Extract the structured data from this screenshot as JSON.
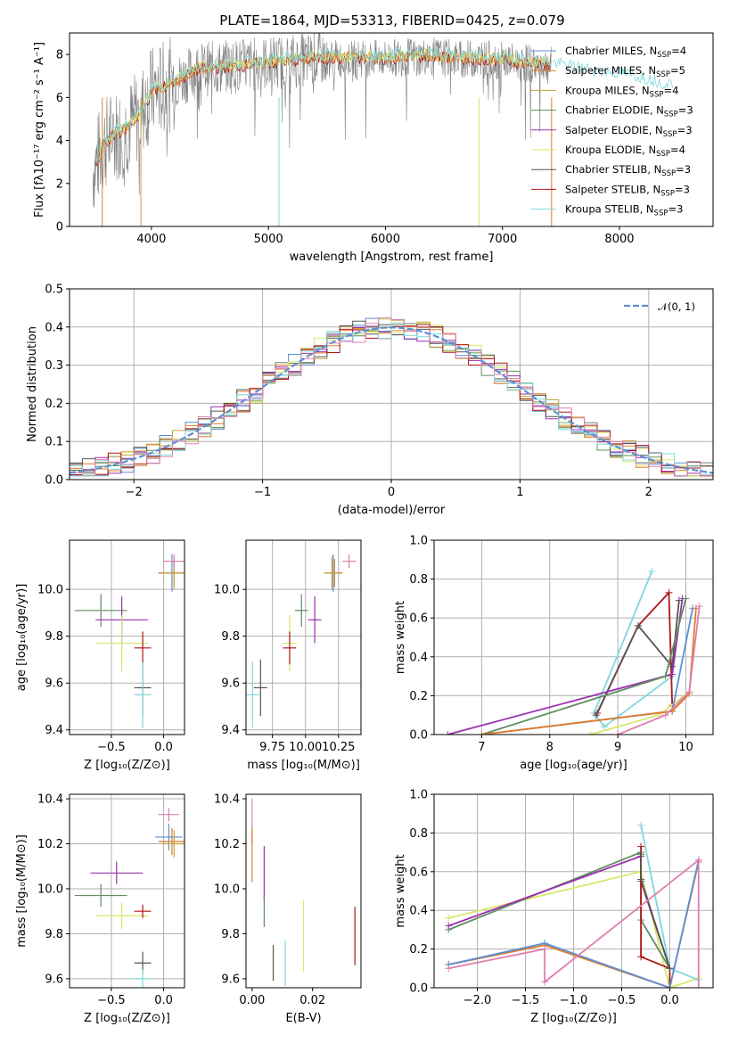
{
  "figure": {
    "title": "PLATE=1864, MJD=53313, FIBERID=0425, z=0.079"
  },
  "colors": {
    "Chabrier MILES": "#5a8fd6",
    "Salpeter MILES": "#e07b2a",
    "Kroupa MILES": "#c4a23a",
    "Chabrier ELODIE": "#5f8f5f",
    "Salpeter ELODIE": "#9b30b0",
    "Kroupa ELODIE": "#d6e86a",
    "Chabrier STELIB": "#555555",
    "Salpeter STELIB": "#b01515",
    "Kroupa STELIB": "#7fd8dc",
    "data": "#808080",
    "pink": "#e07fb0",
    "gaussian": "#5a8fd6",
    "grid": "#b0b0b0"
  },
  "chart_data": [
    {
      "id": "spectrum",
      "type": "line",
      "xlabel": "wavelength [Angstrom, rest frame]",
      "ylabel": "Flux [fλ10⁻¹⁷ erg cm⁻² s⁻¹ A⁻¹]",
      "xlim": [
        3300,
        8800
      ],
      "ylim": [
        0,
        9
      ],
      "xticks": [
        4000,
        5000,
        6000,
        7000,
        8000
      ],
      "yticks": [
        0,
        2,
        4,
        6,
        8
      ],
      "grid": false,
      "legend_position": "right",
      "legend": [
        "Chabrier MILES, N_SSP=4",
        "Salpeter MILES, N_SSP=5",
        "Kroupa MILES, N_SSP=4",
        "Chabrier ELODIE, N_SSP=3",
        "Salpeter ELODIE, N_SSP=3",
        "Kroupa ELODIE, N_SSP=4",
        "Chabrier STELIB, N_SSP=3",
        "Salpeter STELIB, N_SSP=3",
        "Kroupa STELIB, N_SSP=3"
      ],
      "continuum": {
        "x": [
          3500,
          3600,
          3700,
          3800,
          3900,
          4000,
          4200,
          4400,
          4600,
          4800,
          5000,
          5200,
          5400,
          5600,
          5800,
          6000,
          6200,
          6400,
          6600,
          6800,
          7000,
          7200,
          7400,
          7600,
          7800,
          8000,
          8200,
          8400
        ],
        "y": [
          2.6,
          3.9,
          4.3,
          4.6,
          5.2,
          6.2,
          6.7,
          7.3,
          7.4,
          7.5,
          7.6,
          7.7,
          7.8,
          7.8,
          7.8,
          7.8,
          7.9,
          7.9,
          7.8,
          7.8,
          7.7,
          7.6,
          7.5,
          7.3,
          7.1,
          7.0,
          6.8,
          6.5
        ]
      }
    },
    {
      "id": "residuals",
      "type": "bar",
      "xlabel": "(data-model)/error",
      "ylabel": "Normed distribution",
      "xlim": [
        -2.5,
        2.5
      ],
      "ylim": [
        0,
        0.5
      ],
      "xticks": [
        -2,
        -1,
        0,
        1,
        2
      ],
      "yticks": [
        0.0,
        0.1,
        0.2,
        0.3,
        0.4,
        0.5
      ],
      "grid": true,
      "legend_position": "top-right",
      "legend": [
        "𝒩(0, 1)"
      ],
      "bin_width": 0.1
    },
    {
      "id": "age_vs_Z",
      "type": "scatter",
      "xlabel": "Z [log₁₀(Z/Z⊙)]",
      "ylabel": "age  [log₁₀(age/yr)]",
      "xlim": [
        -0.9,
        0.2
      ],
      "ylim": [
        9.38,
        10.21
      ],
      "xticks": [
        -0.5,
        0.0
      ],
      "yticks": [
        9.4,
        9.6,
        9.8,
        10.0
      ],
      "grid": true,
      "points": [
        {
          "model": "Chabrier MILES",
          "x": 0.08,
          "y": 10.07,
          "xerr": 0.13,
          "yerr": 0.08
        },
        {
          "model": "Salpeter MILES",
          "x": 0.1,
          "y": 10.07,
          "xerr": 0.13,
          "yerr": 0.06
        },
        {
          "model": "Kroupa MILES",
          "x": 0.1,
          "y": 10.07,
          "xerr": 0.12,
          "yerr": 0.07
        },
        {
          "model": "Chabrier ELODIE",
          "x": -0.6,
          "y": 9.91,
          "xerr": 0.25,
          "yerr": 0.07
        },
        {
          "model": "Salpeter ELODIE",
          "x": -0.4,
          "y": 9.87,
          "xerr": 0.25,
          "yerr": 0.1
        },
        {
          "model": "Kroupa ELODIE",
          "x": -0.4,
          "y": 9.77,
          "xerr": 0.25,
          "yerr": 0.12
        },
        {
          "model": "Chabrier STELIB",
          "x": -0.2,
          "y": 9.58,
          "xerr": 0.08,
          "yerr": 0.12
        },
        {
          "model": "Salpeter STELIB",
          "x": -0.2,
          "y": 9.75,
          "xerr": 0.08,
          "yerr": 0.07
        },
        {
          "model": "Kroupa STELIB",
          "x": -0.2,
          "y": 9.55,
          "xerr": 0.08,
          "yerr": 0.14
        },
        {
          "model": "pink",
          "x": 0.1,
          "y": 10.12,
          "xerr": 0.1,
          "yerr": 0.03
        }
      ]
    },
    {
      "id": "age_vs_mass",
      "type": "scatter",
      "xlabel": "mass [log₁₀(M/M⊙)]",
      "ylabel": "",
      "xlim": [
        9.55,
        10.42
      ],
      "ylim": [
        9.38,
        10.21
      ],
      "xticks": [
        9.75,
        10.0,
        10.25
      ],
      "yticks": [
        9.4,
        9.6,
        9.8,
        10.0
      ],
      "grid": true,
      "points": [
        {
          "model": "Chabrier MILES",
          "x": 10.21,
          "y": 10.07,
          "xerr": 0.06,
          "yerr": 0.08
        },
        {
          "model": "Salpeter MILES",
          "x": 10.22,
          "y": 10.07,
          "xerr": 0.06,
          "yerr": 0.06
        },
        {
          "model": "Kroupa MILES",
          "x": 10.2,
          "y": 10.07,
          "xerr": 0.06,
          "yerr": 0.07
        },
        {
          "model": "Chabrier ELODIE",
          "x": 9.97,
          "y": 9.91,
          "xerr": 0.05,
          "yerr": 0.07
        },
        {
          "model": "Salpeter ELODIE",
          "x": 10.07,
          "y": 9.87,
          "xerr": 0.05,
          "yerr": 0.1
        },
        {
          "model": "Kroupa ELODIE",
          "x": 9.88,
          "y": 9.77,
          "xerr": 0.05,
          "yerr": 0.12
        },
        {
          "model": "Chabrier STELIB",
          "x": 9.66,
          "y": 9.58,
          "xerr": 0.05,
          "yerr": 0.12
        },
        {
          "model": "Salpeter STELIB",
          "x": 9.88,
          "y": 9.75,
          "xerr": 0.05,
          "yerr": 0.07
        },
        {
          "model": "Kroupa STELIB",
          "x": 9.6,
          "y": 9.55,
          "xerr": 0.05,
          "yerr": 0.14
        },
        {
          "model": "pink",
          "x": 10.33,
          "y": 10.12,
          "xerr": 0.05,
          "yerr": 0.03
        }
      ]
    },
    {
      "id": "mass_weight_vs_age",
      "type": "line",
      "xlabel": "age  [log₁₀(age/yr)]",
      "ylabel": "mass weight",
      "xlim": [
        6.3,
        10.4
      ],
      "ylim": [
        0,
        1
      ],
      "xticks": [
        7,
        8,
        9,
        10
      ],
      "yticks": [
        0.0,
        0.2,
        0.4,
        0.6,
        0.8,
        1.0
      ],
      "grid": true,
      "series": [
        {
          "model": "Kroupa STELIB",
          "x": [
            9.5,
            8.65,
            8.8,
            9.8
          ],
          "y": [
            0.84,
            0.11,
            0.04,
            0.3
          ]
        },
        {
          "model": "Salpeter STELIB",
          "x": [
            8.7,
            9.3,
            9.75,
            9.8
          ],
          "y": [
            0.11,
            0.56,
            0.73,
            0.15
          ]
        },
        {
          "model": "Chabrier STELIB",
          "x": [
            8.68,
            9.3,
            9.8,
            9.9
          ],
          "y": [
            0.1,
            0.56,
            0.35,
            0.69
          ]
        },
        {
          "model": "Salpeter ELODIE",
          "x": [
            6.5,
            9.8,
            9.95
          ],
          "y": [
            0.0,
            0.31,
            0.7
          ]
        },
        {
          "model": "Chabrier ELODIE",
          "x": [
            7.0,
            9.7,
            10.0
          ],
          "y": [
            0.0,
            0.3,
            0.7
          ]
        },
        {
          "model": "Kroupa ELODIE",
          "x": [
            8.6,
            9.6,
            10.05
          ],
          "y": [
            0.0,
            0.1,
            0.22
          ]
        },
        {
          "model": "Chabrier MILES",
          "x": [
            7.0,
            9.8,
            10.1
          ],
          "y": [
            0.0,
            0.12,
            0.65
          ]
        },
        {
          "model": "Salpeter MILES",
          "x": [
            7.0,
            9.8,
            10.05,
            10.15
          ],
          "y": [
            0.0,
            0.12,
            0.21,
            0.65
          ]
        },
        {
          "model": "pink",
          "x": [
            9.0,
            9.7,
            10.05,
            10.2
          ],
          "y": [
            0.0,
            0.1,
            0.22,
            0.66
          ]
        }
      ]
    },
    {
      "id": "mass_vs_Z",
      "type": "scatter",
      "xlabel": "Z [log₁₀(Z/Z⊙)]",
      "ylabel": "mass [log₁₀(M/M⊙)]",
      "xlim": [
        -0.9,
        0.2
      ],
      "ylim": [
        9.56,
        10.42
      ],
      "xticks": [
        -0.5,
        0.0
      ],
      "yticks": [
        9.6,
        9.8,
        10.0,
        10.2,
        10.4
      ],
      "grid": true,
      "points": [
        {
          "model": "Chabrier MILES",
          "x": 0.05,
          "y": 10.23,
          "xerr": 0.13,
          "yerr": 0.06
        },
        {
          "model": "Salpeter MILES",
          "x": 0.08,
          "y": 10.21,
          "xerr": 0.13,
          "yerr": 0.06
        },
        {
          "model": "Kroupa MILES",
          "x": 0.1,
          "y": 10.2,
          "xerr": 0.12,
          "yerr": 0.06
        },
        {
          "model": "Chabrier ELODIE",
          "x": -0.6,
          "y": 9.97,
          "xerr": 0.25,
          "yerr": 0.05
        },
        {
          "model": "Salpeter ELODIE",
          "x": -0.45,
          "y": 10.07,
          "xerr": 0.25,
          "yerr": 0.05
        },
        {
          "model": "Kroupa ELODIE",
          "x": -0.4,
          "y": 9.88,
          "xerr": 0.25,
          "yerr": 0.06
        },
        {
          "model": "Chabrier STELIB",
          "x": -0.2,
          "y": 9.67,
          "xerr": 0.08,
          "yerr": 0.05
        },
        {
          "model": "Salpeter STELIB",
          "x": -0.2,
          "y": 9.9,
          "xerr": 0.08,
          "yerr": 0.03
        },
        {
          "model": "Kroupa STELIB",
          "x": -0.2,
          "y": 9.6,
          "xerr": 0.08,
          "yerr": 0.04
        },
        {
          "model": "pink",
          "x": 0.05,
          "y": 10.33,
          "xerr": 0.1,
          "yerr": 0.03
        }
      ]
    },
    {
      "id": "mass_vs_ebv",
      "type": "scatter",
      "xlabel": "E(B-V)",
      "ylabel": "",
      "xlim": [
        -0.002,
        0.036
      ],
      "ylim": [
        9.56,
        10.42
      ],
      "xticks": [
        0.0,
        0.02
      ],
      "yticks": [
        9.6,
        9.8,
        10.0,
        10.2,
        10.4
      ],
      "grid": false,
      "points": [
        {
          "model": "pink",
          "x": 0.0,
          "y": 10.3,
          "yerr": 0.1
        },
        {
          "model": "Salpeter MILES",
          "x": 0.0,
          "y": 10.15,
          "yerr": 0.12
        },
        {
          "model": "Salpeter ELODIE",
          "x": 0.004,
          "y": 10.07,
          "yerr": 0.12
        },
        {
          "model": "Chabrier ELODIE",
          "x": 0.004,
          "y": 9.9,
          "yerr": 0.07
        },
        {
          "model": "Chabrier STELIB",
          "x": 0.007,
          "y": 9.67,
          "yerr": 0.08
        },
        {
          "model": "Kroupa STELIB",
          "x": 0.011,
          "y": 9.67,
          "yerr": 0.1
        },
        {
          "model": "Kroupa ELODIE",
          "x": 0.017,
          "y": 9.79,
          "yerr": 0.16
        },
        {
          "model": "Salpeter STELIB",
          "x": 0.034,
          "y": 9.79,
          "yerr": 0.13
        }
      ]
    },
    {
      "id": "mass_weight_vs_Z",
      "type": "line",
      "xlabel": "Z [log₁₀(Z/Z⊙)]",
      "ylabel": "mass weight",
      "xlim": [
        -2.45,
        0.45
      ],
      "ylim": [
        0,
        1
      ],
      "xticks": [
        -2.0,
        -1.5,
        -1.0,
        -0.5,
        0.0
      ],
      "yticks": [
        0.0,
        0.2,
        0.4,
        0.6,
        0.8,
        1.0
      ],
      "grid": true,
      "series": [
        {
          "model": "Kroupa ELODIE",
          "x": [
            -2.3,
            -0.3,
            0.0,
            0.3
          ],
          "y": [
            0.36,
            0.6,
            0.0,
            0.05
          ]
        },
        {
          "model": "Chabrier ELODIE",
          "x": [
            -2.3,
            -0.3,
            -0.3,
            0.0
          ],
          "y": [
            0.3,
            0.7,
            0.35,
            0.1
          ]
        },
        {
          "model": "Salpeter ELODIE",
          "x": [
            -2.3,
            -0.3,
            -0.3,
            0.0
          ],
          "y": [
            0.32,
            0.68,
            0.55,
            0.1
          ]
        },
        {
          "model": "Salpeter STELIB",
          "x": [
            -0.3,
            -0.3,
            0.0,
            0.0
          ],
          "y": [
            0.73,
            0.16,
            0.1,
            0.0
          ]
        },
        {
          "model": "Kroupa STELIB",
          "x": [
            -0.3,
            0.0,
            0.3
          ],
          "y": [
            0.84,
            0.1,
            0.04
          ]
        },
        {
          "model": "Chabrier STELIB",
          "x": [
            -0.3,
            -0.3,
            0.0
          ],
          "y": [
            0.69,
            0.56,
            0.1
          ]
        },
        {
          "model": "Salpeter MILES",
          "x": [
            -2.3,
            -1.3,
            0.0,
            0.3
          ],
          "y": [
            0.12,
            0.22,
            0.0,
            0.65
          ]
        },
        {
          "model": "Chabrier MILES",
          "x": [
            -2.3,
            -1.3,
            0.0,
            0.3
          ],
          "y": [
            0.12,
            0.23,
            0.0,
            0.66
          ]
        },
        {
          "model": "pink",
          "x": [
            -2.3,
            -1.3,
            -1.3,
            0.3,
            0.3
          ],
          "y": [
            0.1,
            0.2,
            0.03,
            0.66,
            0.0
          ]
        }
      ]
    }
  ]
}
